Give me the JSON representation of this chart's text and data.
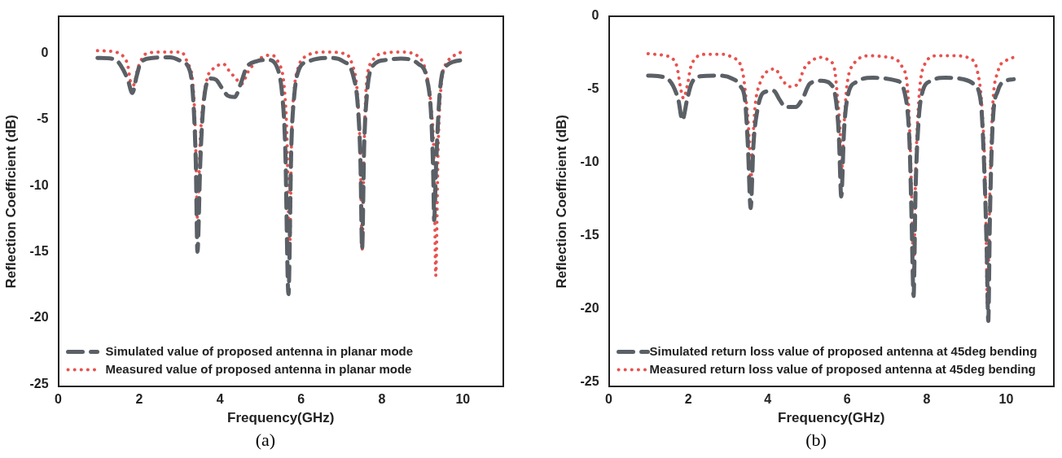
{
  "chart_data": [
    {
      "type": "line",
      "xlabel": "Frequency(GHz)",
      "ylabel": "Reflection Coefficient (dB)",
      "xlim": [
        0,
        11
      ],
      "xticks": [
        0,
        2,
        4,
        6,
        8,
        10
      ],
      "ylim": [
        -25.2,
        2.8
      ],
      "yticks": [
        -25,
        -20,
        -15,
        -10,
        -5,
        0
      ],
      "grid": false,
      "legend": "bottom left",
      "marker": "none",
      "annotations": [
        "(a)"
      ],
      "series": [
        {
          "name": "Simulated value of proposed antenna in planar mode",
          "color": "#5a6066",
          "line_style": "dashed",
          "x": [
            0.97,
            1.4,
            1.54,
            1.72,
            1.83,
            1.94,
            2.04,
            2.33,
            2.76,
            3.04,
            3.26,
            3.34,
            3.4,
            3.44,
            3.51,
            3.58,
            3.76,
            3.9,
            4.04,
            4.19,
            4.36,
            4.51,
            4.65,
            4.9,
            5.19,
            5.4,
            5.54,
            5.61,
            5.69,
            5.76,
            5.83,
            5.94,
            6.19,
            6.69,
            7.04,
            7.29,
            7.41,
            7.47,
            7.51,
            7.56,
            7.63,
            7.76,
            8.11,
            8.47,
            8.9,
            9.11,
            9.22,
            9.27,
            9.29,
            9.34,
            9.44,
            9.61,
            10.04
          ],
          "values": [
            -0.35,
            -0.45,
            -0.9,
            -2.0,
            -3.0,
            -1.7,
            -0.7,
            -0.35,
            -0.3,
            -0.6,
            -1.4,
            -3.7,
            -8.3,
            -15.0,
            -8.3,
            -4.2,
            -1.9,
            -2.0,
            -2.6,
            -3.2,
            -3.3,
            -2.3,
            -1.1,
            -0.6,
            -0.5,
            -1.0,
            -3.3,
            -7.1,
            -18.2,
            -7.1,
            -3.3,
            -1.3,
            -0.6,
            -0.35,
            -0.6,
            -1.7,
            -4.2,
            -8.3,
            -14.8,
            -7.1,
            -3.1,
            -1.0,
            -0.5,
            -0.4,
            -0.8,
            -1.9,
            -4.9,
            -9.4,
            -12.6,
            -8.3,
            -2.6,
            -0.9,
            -0.5
          ]
        },
        {
          "name": "Measured value of proposed antenna in planar mode",
          "color": "#e8524f",
          "line_style": "dotted",
          "x": [
            0.97,
            1.4,
            1.61,
            1.72,
            1.79,
            1.86,
            1.97,
            2.19,
            2.61,
            3.04,
            3.19,
            3.33,
            3.39,
            3.44,
            3.51,
            3.58,
            3.69,
            3.86,
            4.08,
            4.22,
            4.36,
            4.54,
            4.69,
            4.9,
            5.08,
            5.26,
            5.44,
            5.58,
            5.65,
            5.72,
            5.77,
            5.83,
            5.94,
            6.11,
            6.61,
            7.04,
            7.26,
            7.4,
            7.47,
            7.51,
            7.56,
            7.61,
            7.76,
            8.04,
            8.47,
            8.9,
            9.11,
            9.22,
            9.29,
            9.33,
            9.39,
            9.47,
            9.61,
            9.9,
            9.97
          ],
          "values": [
            0.2,
            0.1,
            -0.24,
            -0.92,
            -2.2,
            -2.4,
            -1.1,
            0,
            0.1,
            0.1,
            -0.7,
            -2.4,
            -6.0,
            -12.4,
            -6.5,
            -3.7,
            -1.8,
            -1.1,
            -0.8,
            -1.3,
            -1.8,
            -2.3,
            -1.4,
            -0.6,
            -0.24,
            -0.13,
            -0.7,
            -2.4,
            -6.0,
            -15.0,
            -6.0,
            -2.8,
            -1.0,
            -0.24,
            0.1,
            0,
            -0.8,
            -3.3,
            -8.3,
            -14.9,
            -7.1,
            -2.6,
            -0.6,
            0,
            0.1,
            -0.24,
            -1.7,
            -4.2,
            -8.3,
            -16.8,
            -7.1,
            -2.2,
            -0.7,
            0,
            0.1
          ]
        }
      ]
    },
    {
      "type": "line",
      "xlabel": "Frequency(GHz)",
      "ylabel": "Reflection Coefficient (dB)",
      "xlim": [
        0,
        11.2
      ],
      "xticks": [
        0,
        2,
        4,
        6,
        8,
        10
      ],
      "ylim": [
        -25.3,
        0
      ],
      "yticks": [
        -25,
        -20,
        -15,
        -10,
        -5,
        0
      ],
      "grid": false,
      "legend": "bottom left",
      "marker": "none",
      "annotations": [
        "(b)"
      ],
      "series": [
        {
          "name": "Simulated return loss value of proposed antenna at 45deg bending",
          "color": "#5a6066",
          "line_style": "dashed",
          "x": [
            0.99,
            1.43,
            1.75,
            1.85,
            1.97,
            2.08,
            2.3,
            2.74,
            3.1,
            3.32,
            3.43,
            3.5,
            3.57,
            3.64,
            3.74,
            3.9,
            4.15,
            4.3,
            4.44,
            4.7,
            4.88,
            5.06,
            5.35,
            5.57,
            5.72,
            5.79,
            5.85,
            5.92,
            5.99,
            6.22,
            6.66,
            7.24,
            7.46,
            7.57,
            7.62,
            7.67,
            7.72,
            7.79,
            7.88,
            8.12,
            8.48,
            8.92,
            9.17,
            9.36,
            9.44,
            9.51,
            9.55,
            9.59,
            9.66,
            9.79,
            10.01,
            10.19
          ],
          "values": [
            -4.05,
            -4.2,
            -5.7,
            -7.1,
            -5.7,
            -4.6,
            -4.1,
            -4.05,
            -4.25,
            -4.8,
            -5.8,
            -8.8,
            -13.1,
            -8.8,
            -6.4,
            -5.2,
            -5.1,
            -5.7,
            -6.2,
            -6.2,
            -5.6,
            -4.6,
            -4.4,
            -4.6,
            -5.8,
            -8.2,
            -12.3,
            -7.8,
            -5.8,
            -4.5,
            -4.2,
            -4.4,
            -5.4,
            -8.8,
            -13.9,
            -19.1,
            -11.9,
            -7.4,
            -5.3,
            -4.4,
            -4.2,
            -4.3,
            -4.6,
            -5.8,
            -9.8,
            -15.9,
            -20.8,
            -13.9,
            -7.4,
            -5.1,
            -4.4,
            -4.3
          ]
        },
        {
          "name": "Measured return loss value of proposed antenna at 45deg bending",
          "color": "#e8524f",
          "line_style": "dotted",
          "x": [
            0.99,
            1.43,
            1.61,
            1.72,
            1.8,
            1.88,
            1.97,
            2.08,
            2.44,
            2.88,
            3.1,
            3.35,
            3.46,
            3.54,
            3.57,
            3.62,
            3.68,
            3.8,
            3.97,
            4.19,
            4.33,
            4.55,
            4.77,
            4.91,
            5.13,
            5.32,
            5.53,
            5.68,
            5.75,
            5.83,
            5.86,
            5.92,
            5.99,
            6.15,
            6.59,
            7.03,
            7.39,
            7.54,
            7.62,
            7.67,
            7.72,
            7.79,
            7.9,
            8.26,
            8.7,
            9.1,
            9.28,
            9.39,
            9.48,
            9.53,
            9.59,
            9.66,
            9.79,
            10.01,
            10.19
          ],
          "values": [
            -2.56,
            -2.7,
            -2.9,
            -3.5,
            -4.8,
            -5.6,
            -4.8,
            -3.3,
            -2.6,
            -2.6,
            -2.8,
            -3.6,
            -5.8,
            -8.8,
            -11.5,
            -8.8,
            -6.2,
            -4.6,
            -3.8,
            -3.6,
            -4.2,
            -4.8,
            -4.6,
            -3.6,
            -3.0,
            -2.8,
            -3.0,
            -3.6,
            -5.4,
            -8.2,
            -10.5,
            -7.4,
            -4.8,
            -3.3,
            -2.7,
            -2.8,
            -3.5,
            -5.8,
            -11.9,
            -17.9,
            -10.9,
            -6.2,
            -3.6,
            -2.7,
            -2.7,
            -2.9,
            -3.8,
            -6.2,
            -11.9,
            -19.9,
            -11.9,
            -6.2,
            -3.8,
            -3.0,
            -2.8
          ]
        }
      ]
    }
  ]
}
